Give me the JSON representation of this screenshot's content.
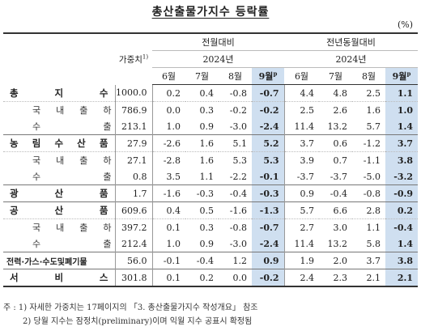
{
  "title": "총산출물가지수 등락률",
  "unit": "(%)",
  "headers": {
    "weight": "가중치",
    "weight_sup": "1)",
    "mom": "전월대비",
    "yoy": "전년동월대비",
    "year_mom": "2024년",
    "year_yoy": "2024년",
    "months_mom": [
      "6월",
      "7월",
      "8월",
      "9월"
    ],
    "months_yoy": [
      "6월",
      "7월",
      "8월",
      "9월"
    ],
    "prelim_sup": "p"
  },
  "rows": [
    {
      "label": "총 지 수",
      "weight": "1000.0",
      "mom": [
        "0.2",
        "0.4",
        "-0.8",
        "-0.7"
      ],
      "yoy": [
        "4.4",
        "4.8",
        "2.5",
        "1.1"
      ]
    },
    {
      "label": "국 내 출 하",
      "weight": "786.9",
      "mom": [
        "0.0",
        "0.3",
        "-0.2",
        "-0.2"
      ],
      "yoy": [
        "2.5",
        "2.6",
        "1.6",
        "1.0"
      ]
    },
    {
      "label": "수 출",
      "weight": "213.1",
      "mom": [
        "1.0",
        "0.9",
        "-3.0",
        "-2.4"
      ],
      "yoy": [
        "11.4",
        "13.2",
        "5.7",
        "1.4"
      ]
    },
    {
      "label": "농 림 수 산 품",
      "weight": "27.9",
      "mom": [
        "-2.6",
        "1.6",
        "5.1",
        "5.2"
      ],
      "yoy": [
        "3.7",
        "0.6",
        "-1.2",
        "3.7"
      ]
    },
    {
      "label": "국 내 출 하",
      "weight": "27.1",
      "mom": [
        "-2.8",
        "1.6",
        "5.3",
        "5.3"
      ],
      "yoy": [
        "3.9",
        "0.7",
        "-1.1",
        "3.8"
      ]
    },
    {
      "label": "수 출",
      "weight": "0.8",
      "mom": [
        "3.5",
        "1.1",
        "-2.2",
        "-0.1"
      ],
      "yoy": [
        "-3.7",
        "-3.7",
        "-5.0",
        "-3.2"
      ]
    },
    {
      "label": "광 산 품",
      "weight": "1.7",
      "mom": [
        "-1.6",
        "-0.3",
        "-0.4",
        "-0.3"
      ],
      "yoy": [
        "0.9",
        "-0.4",
        "-0.8",
        "-0.9"
      ]
    },
    {
      "label": "공 산 품",
      "weight": "609.6",
      "mom": [
        "0.4",
        "0.5",
        "-1.6",
        "-1.3"
      ],
      "yoy": [
        "5.7",
        "6.6",
        "2.8",
        "0.2"
      ]
    },
    {
      "label": "국 내 출 하",
      "weight": "397.2",
      "mom": [
        "0.1",
        "0.3",
        "-0.8",
        "-0.7"
      ],
      "yoy": [
        "2.7",
        "3.0",
        "1.1",
        "-0.4"
      ]
    },
    {
      "label": "수 출",
      "weight": "212.4",
      "mom": [
        "1.0",
        "0.9",
        "-3.0",
        "-2.4"
      ],
      "yoy": [
        "11.4",
        "13.2",
        "5.8",
        "1.4"
      ]
    },
    {
      "label": "전력·가스·수도및폐기물",
      "weight": "56.0",
      "mom": [
        "-0.1",
        "-0.4",
        "1.2",
        "0.9"
      ],
      "yoy": [
        "1.9",
        "2.0",
        "3.7",
        "3.8"
      ]
    },
    {
      "label": "서 비 스",
      "weight": "301.8",
      "mom": [
        "0.1",
        "0.2",
        "0.0",
        "-0.2"
      ],
      "yoy": [
        "2.4",
        "2.3",
        "2.1",
        "2.1"
      ]
    }
  ],
  "notes": {
    "note1": "주 : 1) 자세한 가중치는 17페이지의 「3. 총산출물가지수 작성개요」 참조",
    "note2": "2) 당월 지수는 잠정치(preliminary)이며 익월 지수 공표시 확정됨"
  }
}
